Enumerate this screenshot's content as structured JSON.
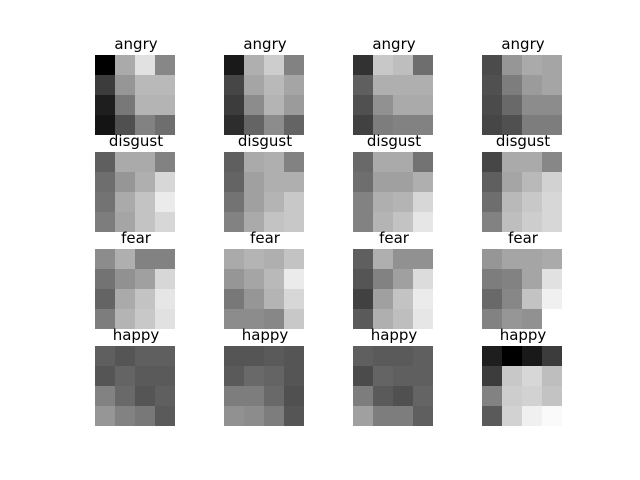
{
  "chart_data": [
    {
      "type": "heatmap",
      "title": "angry",
      "colormap": "gray",
      "values": [
        [
          0,
          170,
          225,
          135
        ],
        [
          60,
          150,
          185,
          185
        ],
        [
          30,
          120,
          180,
          180
        ],
        [
          20,
          80,
          130,
          110
        ]
      ]
    },
    {
      "type": "heatmap",
      "title": "angry",
      "colormap": "gray",
      "values": [
        [
          25,
          175,
          205,
          130
        ],
        [
          70,
          165,
          185,
          165
        ],
        [
          60,
          140,
          180,
          155
        ],
        [
          45,
          100,
          140,
          100
        ]
      ]
    },
    {
      "type": "heatmap",
      "title": "angry",
      "colormap": "gray",
      "values": [
        [
          50,
          200,
          190,
          110
        ],
        [
          95,
          175,
          175,
          175
        ],
        [
          80,
          145,
          170,
          170
        ],
        [
          65,
          125,
          130,
          130
        ]
      ]
    },
    {
      "type": "heatmap",
      "title": "angry",
      "colormap": "gray",
      "values": [
        [
          75,
          150,
          170,
          165
        ],
        [
          80,
          125,
          155,
          165
        ],
        [
          75,
          105,
          140,
          140
        ],
        [
          70,
          80,
          125,
          125
        ]
      ]
    },
    {
      "type": "heatmap",
      "title": "disgust",
      "colormap": "gray",
      "values": [
        [
          95,
          170,
          170,
          130
        ],
        [
          110,
          150,
          175,
          215
        ],
        [
          115,
          170,
          195,
          235
        ],
        [
          125,
          165,
          195,
          215
        ]
      ]
    },
    {
      "type": "heatmap",
      "title": "disgust",
      "colormap": "gray",
      "values": [
        [
          95,
          170,
          175,
          130
        ],
        [
          100,
          160,
          175,
          175
        ],
        [
          115,
          160,
          180,
          200
        ],
        [
          130,
          170,
          195,
          200
        ]
      ]
    },
    {
      "type": "heatmap",
      "title": "disgust",
      "colormap": "gray",
      "values": [
        [
          105,
          170,
          170,
          115
        ],
        [
          110,
          160,
          160,
          175
        ],
        [
          130,
          175,
          180,
          215
        ],
        [
          130,
          180,
          195,
          230
        ]
      ]
    },
    {
      "type": "heatmap",
      "title": "disgust",
      "colormap": "gray",
      "values": [
        [
          70,
          170,
          170,
          135
        ],
        [
          95,
          165,
          185,
          210
        ],
        [
          110,
          185,
          200,
          215
        ],
        [
          130,
          190,
          205,
          215
        ]
      ]
    },
    {
      "type": "heatmap",
      "title": "fear",
      "colormap": "gray",
      "values": [
        [
          140,
          175,
          130,
          130
        ],
        [
          115,
          145,
          160,
          215
        ],
        [
          100,
          170,
          195,
          230
        ],
        [
          125,
          180,
          200,
          225
        ]
      ]
    },
    {
      "type": "heatmap",
      "title": "fear",
      "colormap": "gray",
      "values": [
        [
          170,
          180,
          175,
          195
        ],
        [
          150,
          165,
          185,
          235
        ],
        [
          120,
          150,
          180,
          215
        ],
        [
          140,
          140,
          135,
          200
        ]
      ]
    },
    {
      "type": "heatmap",
      "title": "fear",
      "colormap": "gray",
      "values": [
        [
          95,
          175,
          145,
          145
        ],
        [
          85,
          130,
          160,
          220
        ],
        [
          65,
          160,
          195,
          235
        ],
        [
          90,
          175,
          190,
          230
        ]
      ]
    },
    {
      "type": "heatmap",
      "title": "fear",
      "colormap": "gray",
      "values": [
        [
          150,
          165,
          165,
          170
        ],
        [
          125,
          130,
          165,
          225
        ],
        [
          105,
          135,
          195,
          240
        ],
        [
          130,
          150,
          145,
          255
        ]
      ]
    },
    {
      "type": "heatmap",
      "title": "happy",
      "colormap": "gray",
      "values": [
        [
          95,
          85,
          95,
          95
        ],
        [
          85,
          100,
          90,
          90
        ],
        [
          130,
          105,
          85,
          95
        ],
        [
          150,
          130,
          120,
          90
        ]
      ]
    },
    {
      "type": "heatmap",
      "title": "happy",
      "colormap": "gray",
      "values": [
        [
          85,
          85,
          90,
          85
        ],
        [
          90,
          105,
          100,
          85
        ],
        [
          125,
          125,
          105,
          80
        ],
        [
          145,
          140,
          125,
          85
        ]
      ]
    },
    {
      "type": "heatmap",
      "title": "happy",
      "colormap": "gray",
      "values": [
        [
          95,
          90,
          90,
          95
        ],
        [
          75,
          100,
          95,
          95
        ],
        [
          125,
          90,
          80,
          100
        ],
        [
          160,
          125,
          125,
          95
        ]
      ]
    },
    {
      "type": "heatmap",
      "title": "happy",
      "colormap": "gray",
      "values": [
        [
          30,
          0,
          25,
          60
        ],
        [
          60,
          200,
          215,
          190
        ],
        [
          130,
          205,
          210,
          195
        ],
        [
          90,
          210,
          240,
          250
        ]
      ]
    }
  ]
}
